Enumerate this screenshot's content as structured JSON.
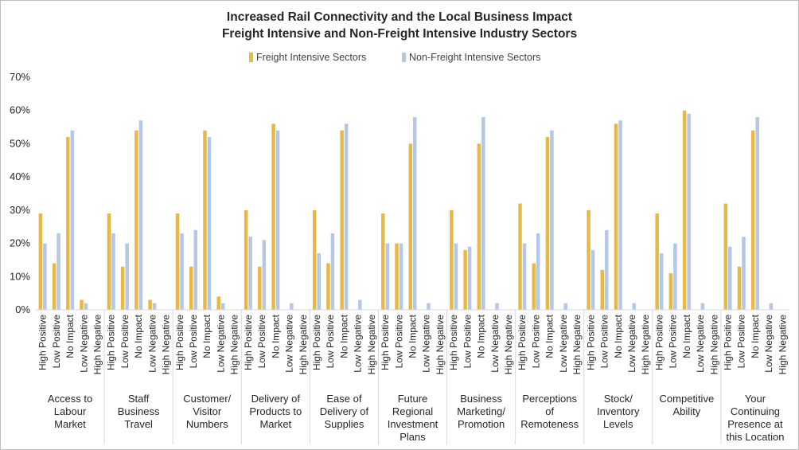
{
  "chart_data": {
    "type": "bar",
    "title": "Increased Rail Connectivity and the Local Business Impact",
    "subtitle": "Freight Intensive and Non-Freight Intensive Industry Sectors",
    "ylim": [
      0,
      70
    ],
    "yticks": [
      "0%",
      "10%",
      "20%",
      "30%",
      "40%",
      "50%",
      "60%",
      "70%"
    ],
    "ytick_values": [
      0,
      10,
      20,
      30,
      40,
      50,
      60,
      70
    ],
    "legend_position": "top-center",
    "legend": [
      "Freight Intensive Sectors",
      "Non-Freight Intensive Sectors"
    ],
    "colors": {
      "freight": "#e8b845",
      "nonfreight": "#b4c7e7",
      "axis": "#d9d9d9",
      "text": "#262626"
    },
    "impact_levels": [
      "High Positive",
      "Low Positive",
      "No Impact",
      "Low Negative",
      "High Negative"
    ],
    "groups": [
      {
        "label": [
          "Access to",
          "Labour",
          "Market"
        ],
        "freight": [
          29,
          14,
          52,
          3,
          0
        ],
        "nonfreight": [
          20,
          23,
          54,
          2,
          0
        ]
      },
      {
        "label": [
          "Staff",
          "Business",
          "Travel"
        ],
        "freight": [
          29,
          13,
          54,
          3,
          0
        ],
        "nonfreight": [
          23,
          20,
          57,
          2,
          0
        ]
      },
      {
        "label": [
          "Customer/",
          "Visitor",
          "Numbers"
        ],
        "freight": [
          29,
          13,
          54,
          4,
          0
        ],
        "nonfreight": [
          23,
          24,
          52,
          2,
          0
        ]
      },
      {
        "label": [
          "Delivery of",
          "Products to",
          "Market"
        ],
        "freight": [
          30,
          13,
          56,
          0,
          0
        ],
        "nonfreight": [
          22,
          21,
          54,
          2,
          0
        ]
      },
      {
        "label": [
          "Ease of",
          "Delivery of",
          "Supplies"
        ],
        "freight": [
          30,
          14,
          54,
          0,
          0
        ],
        "nonfreight": [
          17,
          23,
          56,
          3,
          0
        ]
      },
      {
        "label": [
          "Future",
          "Regional",
          "Investment",
          "Plans"
        ],
        "freight": [
          29,
          20,
          50,
          0,
          0
        ],
        "nonfreight": [
          20,
          20,
          58,
          2,
          0
        ]
      },
      {
        "label": [
          "Business",
          "Marketing/",
          "Promotion"
        ],
        "freight": [
          30,
          18,
          50,
          0,
          0
        ],
        "nonfreight": [
          20,
          19,
          58,
          2,
          0
        ]
      },
      {
        "label": [
          "Perceptions",
          "of",
          "Remoteness"
        ],
        "freight": [
          32,
          14,
          52,
          0,
          0
        ],
        "nonfreight": [
          20,
          23,
          54,
          2,
          0
        ]
      },
      {
        "label": [
          "Stock/",
          "Inventory",
          "Levels"
        ],
        "freight": [
          30,
          12,
          56,
          0,
          0
        ],
        "nonfreight": [
          18,
          24,
          57,
          2,
          0
        ]
      },
      {
        "label": [
          "Competitive",
          "Ability"
        ],
        "freight": [
          29,
          11,
          60,
          0,
          0
        ],
        "nonfreight": [
          17,
          20,
          59,
          2,
          0
        ]
      },
      {
        "label": [
          "Your",
          "Continuing",
          "Presence at",
          "this Location"
        ],
        "freight": [
          32,
          13,
          54,
          0,
          0
        ],
        "nonfreight": [
          19,
          22,
          58,
          2,
          0
        ]
      }
    ]
  }
}
